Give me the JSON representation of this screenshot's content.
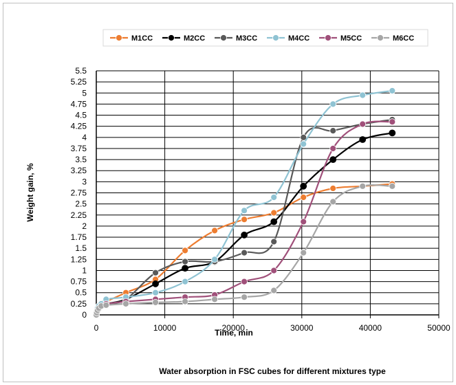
{
  "chart_data": {
    "type": "line",
    "title": "",
    "xlabel": "Time, min",
    "ylabel": "Weight gain, %",
    "caption": "Water absorption  in FSC cubes for different mixtures type",
    "xlim": [
      0,
      50000
    ],
    "ylim": [
      0,
      5.5
    ],
    "xticks": [
      0,
      10000,
      20000,
      30000,
      40000,
      50000
    ],
    "xtick_labels": [
      "0",
      "10000",
      "20000",
      "30000",
      "40000",
      "50000"
    ],
    "yticks": [
      0,
      0.25,
      0.5,
      0.75,
      1,
      1.25,
      1.5,
      1.75,
      2,
      2.25,
      2.5,
      2.75,
      3,
      3.25,
      3.5,
      3.75,
      4,
      4.25,
      4.5,
      4.75,
      5,
      5.25,
      5.5
    ],
    "ytick_labels": [
      "0",
      "0.25",
      "0.5",
      "0.75",
      "1",
      "1.25",
      "1.5",
      "1.75",
      "2",
      "2.25",
      "2.5",
      "2.75",
      "3",
      "3.25",
      "3.5",
      "3.75",
      "4",
      "4.25",
      "4.5",
      "4.75",
      "5",
      "5.25",
      "5.5"
    ],
    "grid": true,
    "legend_position": "top",
    "series": [
      {
        "name": "M1CC",
        "color": "#ed7d31",
        "x": [
          0,
          60,
          180,
          360,
          720,
          1440,
          4320,
          8640,
          12960,
          17280,
          21600,
          25920,
          30240,
          34560,
          38880,
          43200
        ],
        "y": [
          0,
          0.05,
          0.12,
          0.2,
          0.25,
          0.3,
          0.5,
          0.8,
          1.45,
          1.9,
          2.15,
          2.3,
          2.65,
          2.85,
          2.9,
          2.95
        ]
      },
      {
        "name": "M2CC",
        "color": "#000000",
        "x": [
          0,
          60,
          180,
          360,
          720,
          1440,
          4320,
          8640,
          12960,
          17280,
          21600,
          25920,
          30240,
          34560,
          38880,
          43200
        ],
        "y": [
          0,
          0.05,
          0.1,
          0.15,
          0.2,
          0.25,
          0.35,
          0.7,
          1.05,
          1.2,
          1.8,
          2.1,
          2.9,
          3.5,
          3.95,
          4.1
        ]
      },
      {
        "name": "M3CC",
        "color": "#595959",
        "x": [
          0,
          60,
          180,
          360,
          720,
          1440,
          4320,
          8640,
          12960,
          17280,
          21600,
          25920,
          30240,
          34560,
          38880,
          43200
        ],
        "y": [
          0,
          0.05,
          0.1,
          0.15,
          0.2,
          0.25,
          0.35,
          0.95,
          1.2,
          1.2,
          1.4,
          1.65,
          4.0,
          4.15,
          4.3,
          4.4
        ]
      },
      {
        "name": "M4CC",
        "color": "#8fc3d3",
        "x": [
          0,
          60,
          180,
          360,
          720,
          1440,
          4320,
          8640,
          12960,
          17280,
          21600,
          25920,
          30240,
          34560,
          38880,
          43200
        ],
        "y": [
          0,
          0.05,
          0.15,
          0.2,
          0.25,
          0.35,
          0.4,
          0.5,
          0.75,
          1.25,
          2.35,
          2.65,
          3.85,
          4.75,
          4.95,
          5.05
        ]
      },
      {
        "name": "M5CC",
        "color": "#a0507a",
        "x": [
          0,
          60,
          180,
          360,
          720,
          1440,
          4320,
          8640,
          12960,
          17280,
          21600,
          25920,
          30240,
          34560,
          38880,
          43200
        ],
        "y": [
          0,
          0.05,
          0.1,
          0.15,
          0.2,
          0.25,
          0.3,
          0.35,
          0.4,
          0.45,
          0.75,
          1.0,
          2.1,
          3.75,
          4.3,
          4.35
        ]
      },
      {
        "name": "M6CC",
        "color": "#a6a6a6",
        "x": [
          0,
          60,
          180,
          360,
          720,
          1440,
          4320,
          8640,
          12960,
          17280,
          21600,
          25920,
          30240,
          34560,
          38880,
          43200
        ],
        "y": [
          0,
          0.05,
          0.1,
          0.15,
          0.2,
          0.22,
          0.25,
          0.28,
          0.3,
          0.35,
          0.4,
          0.55,
          1.4,
          2.55,
          2.9,
          2.9
        ]
      }
    ]
  }
}
